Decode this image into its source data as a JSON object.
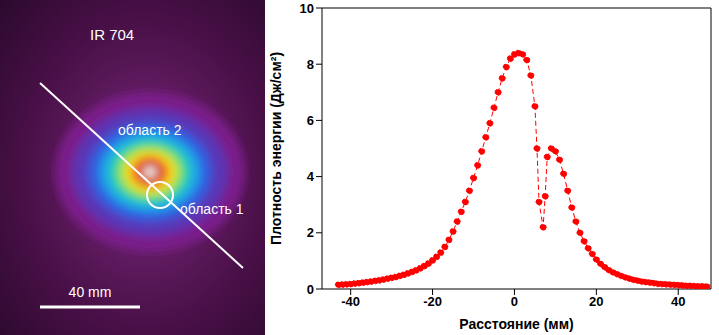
{
  "image": {
    "title": "IR 704",
    "labels": [
      "область 2",
      "область 1"
    ],
    "scale_bar": "40 mm"
  },
  "chart_data": {
    "type": "line",
    "x_label": "Расстояние (мм)",
    "y_label": "Плотность энергии (Дж/см²)",
    "marker": "circle",
    "line_style": "dashed",
    "color": "#ff0000",
    "grid": false,
    "xlim": [
      -47,
      48
    ],
    "xticks": [
      -40,
      -20,
      0,
      20,
      40
    ],
    "ylim": [
      0,
      10
    ],
    "yticks": [
      0,
      2,
      4,
      6,
      8,
      10
    ],
    "x": [
      -43,
      -42,
      -41,
      -40,
      -39,
      -38,
      -37,
      -36,
      -35,
      -34,
      -33,
      -32,
      -31,
      -30,
      -29,
      -28,
      -27,
      -26,
      -25,
      -24,
      -23,
      -22,
      -21,
      -20,
      -19,
      -18,
      -17,
      -16,
      -15,
      -14,
      -13,
      -12,
      -11,
      -10,
      -9,
      -8,
      -7,
      -6,
      -5,
      -4,
      -3,
      -2,
      -1,
      0,
      1,
      2,
      3,
      4,
      5,
      5.5,
      6,
      7,
      7.5,
      8,
      9,
      10,
      11,
      12,
      13,
      14,
      15,
      16,
      17,
      18,
      19,
      20,
      21,
      22,
      23,
      24,
      25,
      26,
      27,
      28,
      29,
      30,
      31,
      32,
      33,
      34,
      35,
      36,
      37,
      38,
      39,
      40,
      41,
      42,
      43,
      44,
      45,
      46,
      47
    ],
    "values": [
      0.15,
      0.16,
      0.17,
      0.18,
      0.2,
      0.21,
      0.23,
      0.25,
      0.27,
      0.29,
      0.31,
      0.34,
      0.37,
      0.4,
      0.43,
      0.47,
      0.51,
      0.56,
      0.61,
      0.67,
      0.74,
      0.82,
      0.91,
      1.02,
      1.15,
      1.3,
      1.5,
      1.75,
      2.05,
      2.4,
      2.75,
      3.1,
      3.5,
      3.95,
      4.4,
      4.9,
      5.4,
      5.9,
      6.45,
      7.0,
      7.5,
      7.9,
      8.2,
      8.35,
      8.4,
      8.35,
      8.15,
      7.6,
      6.5,
      5.0,
      3.1,
      2.2,
      3.3,
      4.7,
      5.0,
      4.9,
      4.6,
      4.1,
      3.5,
      2.9,
      2.4,
      2.0,
      1.7,
      1.45,
      1.25,
      1.05,
      0.9,
      0.78,
      0.68,
      0.6,
      0.53,
      0.47,
      0.42,
      0.37,
      0.33,
      0.3,
      0.27,
      0.25,
      0.23,
      0.21,
      0.19,
      0.18,
      0.17,
      0.16,
      0.15,
      0.14,
      0.13,
      0.12,
      0.12,
      0.11,
      0.1,
      0.1,
      0.09
    ]
  }
}
